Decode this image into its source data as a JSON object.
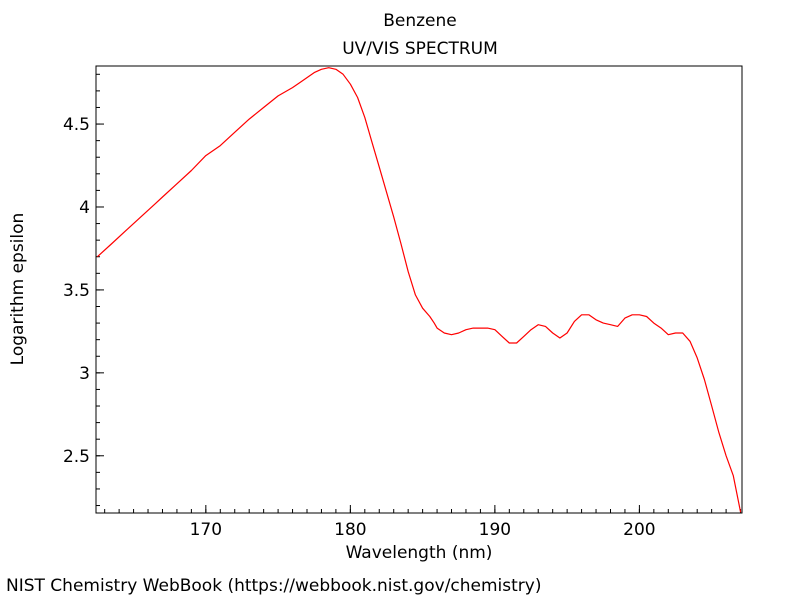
{
  "chart_data": {
    "type": "line",
    "title": "Benzene",
    "subtitle": "UV/VIS SPECTRUM",
    "xlabel": "Wavelength (nm)",
    "ylabel": "Logarithm epsilon",
    "xlim": [
      162.4,
      207.1
    ],
    "ylim": [
      2.155,
      4.85
    ],
    "x_ticks": [
      170,
      180,
      190,
      200
    ],
    "x_tick_labels": [
      "170",
      "180",
      "190",
      "200"
    ],
    "x_minor_step": 1,
    "y_ticks": [
      2.5,
      3,
      3.5,
      4,
      4.5
    ],
    "y_tick_labels": [
      "2.5",
      "3",
      "3.5",
      "4",
      "4.5"
    ],
    "y_minor_step": 0.1,
    "grid": false,
    "legend": "none",
    "line_color": "#ff0000",
    "series": [
      {
        "x": [
          162.5,
          163.5,
          164.5,
          165.5,
          166.5,
          167.0,
          168.0,
          169.0,
          170.0,
          171.0,
          172.0,
          173.0,
          174.0,
          175.0,
          176.0,
          176.5,
          177.0,
          177.5,
          178.0,
          178.5,
          179.0,
          179.5,
          180.0,
          180.5,
          181.0,
          181.5,
          182.0,
          182.5,
          183.0,
          183.5,
          184.0,
          184.5,
          185.0,
          185.5,
          185.8,
          186.0,
          186.5,
          187.0,
          187.5,
          188.0,
          188.5,
          189.0,
          189.5,
          190.0,
          190.5,
          191.0,
          191.5,
          192.0,
          192.5,
          193.0,
          193.5,
          194.0,
          194.5,
          195.0,
          195.5,
          196.0,
          196.5,
          197.0,
          197.5,
          198.0,
          198.5,
          199.0,
          199.5,
          200.0,
          200.5,
          201.0,
          201.5,
          202.0,
          202.5,
          203.0,
          203.5,
          204.0,
          204.5,
          205.0,
          205.5,
          206.0,
          206.5,
          207.0
        ],
        "y": [
          3.7,
          3.78,
          3.86,
          3.94,
          4.02,
          4.06,
          4.14,
          4.22,
          4.31,
          4.37,
          4.45,
          4.53,
          4.6,
          4.67,
          4.72,
          4.75,
          4.78,
          4.81,
          4.83,
          4.84,
          4.83,
          4.8,
          4.74,
          4.66,
          4.54,
          4.39,
          4.24,
          4.09,
          3.94,
          3.78,
          3.61,
          3.47,
          3.39,
          3.34,
          3.3,
          3.27,
          3.24,
          3.23,
          3.24,
          3.26,
          3.27,
          3.27,
          3.27,
          3.26,
          3.22,
          3.18,
          3.18,
          3.22,
          3.26,
          3.29,
          3.28,
          3.24,
          3.21,
          3.24,
          3.31,
          3.35,
          3.35,
          3.32,
          3.3,
          3.29,
          3.28,
          3.33,
          3.35,
          3.35,
          3.34,
          3.3,
          3.27,
          3.23,
          3.24,
          3.24,
          3.19,
          3.09,
          2.96,
          2.8,
          2.64,
          2.5,
          2.38,
          2.16
        ]
      }
    ]
  },
  "footer": {
    "credit": "NIST Chemistry WebBook (https://webbook.nist.gov/chemistry)"
  }
}
